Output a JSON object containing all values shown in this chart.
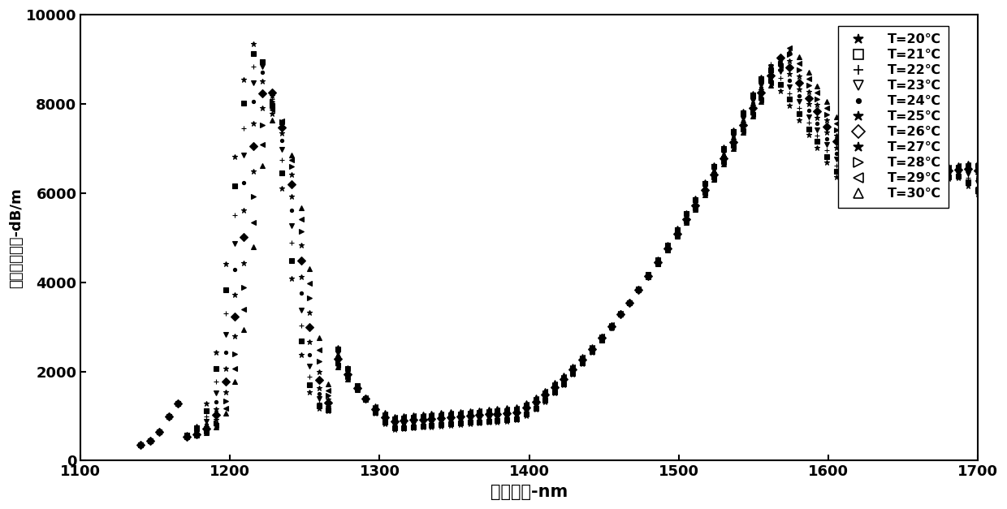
{
  "xlabel": "共振波长-nm",
  "ylabel": "光强损失光谱-dB/m",
  "xlim": [
    1100,
    1700
  ],
  "ylim": [
    0,
    10000
  ],
  "xticks": [
    1100,
    1200,
    1300,
    1400,
    1500,
    1600,
    1700
  ],
  "yticks": [
    0,
    2000,
    4000,
    6000,
    8000,
    10000
  ],
  "legend_labels": [
    "T=20℃",
    "T=21℃",
    "T=22℃",
    "T=23℃",
    "T=24℃",
    "T=25℃",
    "T=26℃",
    "T=27℃",
    "T=28℃",
    "T=29℃",
    "T=30℃"
  ],
  "legend_markers": [
    "*",
    "s",
    "+",
    "v",
    ".",
    "*",
    "D",
    "*",
    ">",
    "<",
    "^"
  ],
  "n_temps": 11
}
